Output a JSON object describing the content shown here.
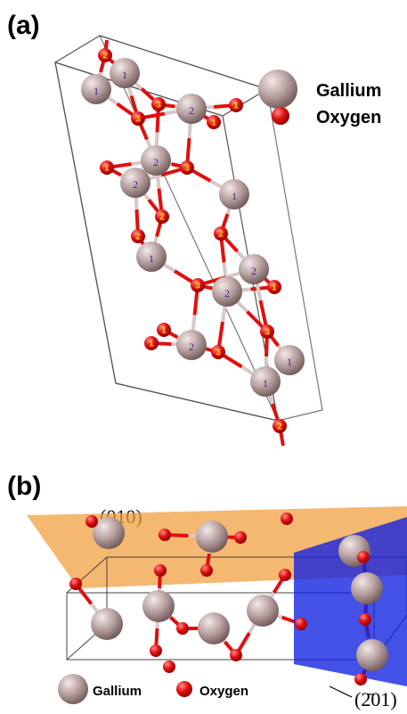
{
  "panel_a": {
    "label": "(a)",
    "legend": [
      "Gallium",
      "Oxygen"
    ],
    "gallium_sites": [
      "1",
      "1",
      "2",
      "2",
      "2",
      "1",
      "1",
      "2",
      "2",
      "2",
      "1",
      "1"
    ],
    "oxygen_sites": [
      "2",
      "3",
      "1",
      "3",
      "1",
      "3",
      "1",
      "2",
      "2",
      "2",
      "3",
      "1",
      "1",
      "1",
      "3",
      "3",
      "2"
    ]
  },
  "panel_b": {
    "label": "(b)",
    "plane_top": "(010)",
    "plane_side": "(2̄01)",
    "legend": [
      "Gallium",
      "Oxygen"
    ]
  }
}
